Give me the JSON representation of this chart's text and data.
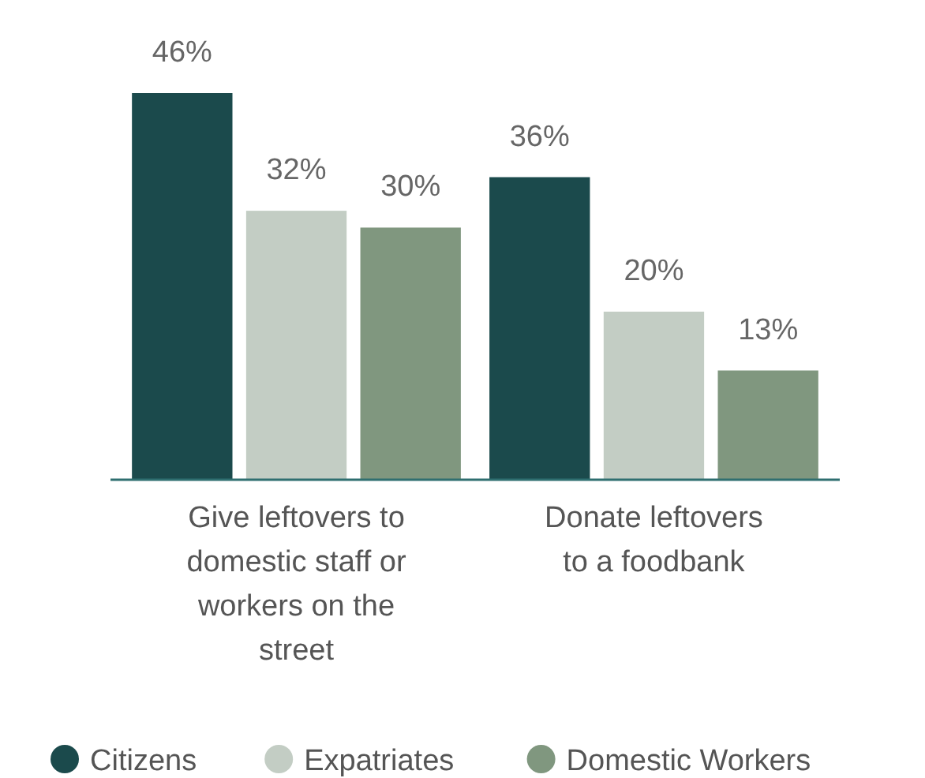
{
  "chart_data": {
    "type": "bar",
    "categories": [
      "Give leftovers to domestic staff or workers on the street",
      "Donate leftovers to a foodbank"
    ],
    "series": [
      {
        "name": "Citizens",
        "color": "#1b4a4c",
        "values": [
          46,
          36
        ],
        "value_labels": [
          "46%",
          "36%"
        ]
      },
      {
        "name": "Expatriates",
        "color": "#c3cdc4",
        "values": [
          32,
          20
        ],
        "value_labels": [
          "32%",
          "20%"
        ]
      },
      {
        "name": "Domestic Workers",
        "color": "#80977f",
        "values": [
          30,
          13
        ],
        "value_labels": [
          "30%",
          "13%"
        ]
      }
    ],
    "legend": "bottom"
  }
}
